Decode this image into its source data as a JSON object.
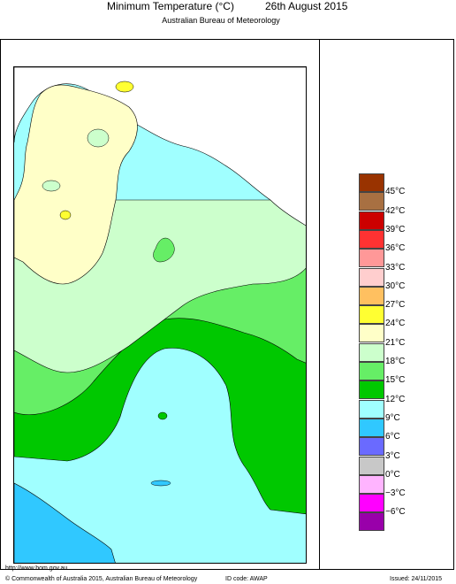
{
  "title": "Minimum Temperature (°C)",
  "date": "26th August 2015",
  "subtitle": "Australian Bureau of Meteorology",
  "legend": {
    "bands": [
      {
        "color": "#993300"
      },
      {
        "color": "#a87042"
      },
      {
        "color": "#cc0000"
      },
      {
        "color": "#ff3232"
      },
      {
        "color": "#ff9898"
      },
      {
        "color": "#ffcece"
      },
      {
        "color": "#ffc060"
      },
      {
        "color": "#ffff32"
      },
      {
        "color": "#ffffc8"
      },
      {
        "color": "#ccffcc"
      },
      {
        "color": "#66ee66"
      },
      {
        "color": "#00c800"
      },
      {
        "color": "#a0ffff"
      },
      {
        "color": "#30c8ff"
      },
      {
        "color": "#6a6aff"
      },
      {
        "color": "#c8c8c8"
      },
      {
        "color": "#ffb4ff"
      },
      {
        "color": "#ff00ff"
      },
      {
        "color": "#9900aa"
      }
    ],
    "ticks": [
      "45°C",
      "42°C",
      "39°C",
      "36°C",
      "33°C",
      "30°C",
      "27°C",
      "24°C",
      "21°C",
      "18°C",
      "15°C",
      "12°C",
      "9°C",
      "6°C",
      "3°C",
      "0°C",
      "−3°C",
      "−6°C"
    ]
  },
  "footer": {
    "url": "http://www.bom.gov.au",
    "copyright": "© Commonwealth of Australia 2015, Australian Bureau of Meteorology",
    "id_code": "ID code: AWAP",
    "issued": "Issued: 24/11/2015"
  }
}
